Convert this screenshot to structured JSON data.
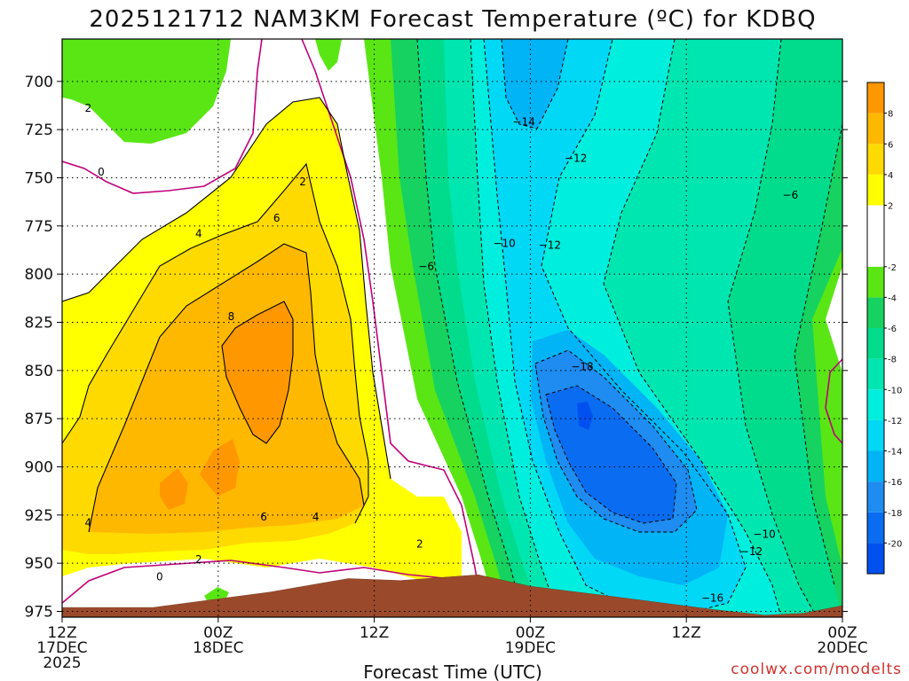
{
  "chart_data": {
    "type": "heatmap",
    "title": "2025121712 NAM3KM Forecast Temperature (ºC) for KDBQ",
    "xlabel": "Forecast Time (UTC)",
    "ylabel": "",
    "credit": "coolwx.com/modelts",
    "y_axis": {
      "unit": "hPa",
      "ticks": [
        700,
        725,
        750,
        775,
        800,
        825,
        850,
        875,
        900,
        925,
        950,
        975
      ],
      "tick_labels": [
        "700",
        "725",
        "750",
        "775",
        "800",
        "825",
        "850",
        "875",
        "900",
        "925",
        "950",
        "975"
      ],
      "ylim": [
        978,
        678
      ],
      "inverted": true
    },
    "x_axis": {
      "unit": "hours since 2025-12-17 12Z",
      "xlim": [
        0,
        60
      ],
      "ticks": [
        {
          "hour": 0,
          "lines": [
            "12Z",
            "17DEC",
            "2025"
          ]
        },
        {
          "hour": 12,
          "lines": [
            "00Z",
            "18DEC"
          ]
        },
        {
          "hour": 24,
          "lines": [
            "12Z"
          ]
        },
        {
          "hour": 36,
          "lines": [
            "00Z",
            "19DEC"
          ]
        },
        {
          "hour": 48,
          "lines": [
            "12Z"
          ]
        },
        {
          "hour": 60,
          "lines": [
            "00Z",
            "20DEC"
          ]
        }
      ]
    },
    "grid": true,
    "colorbar": {
      "levels": [
        -22,
        -20,
        -18,
        -16,
        -14,
        -12,
        -10,
        -8,
        -6,
        -4,
        -2,
        2,
        4,
        6,
        8,
        10
      ],
      "tick_labels": [
        "-20",
        "-18",
        "-16",
        "-14",
        "-12",
        "-10",
        "-8",
        "-6",
        "-4",
        "-2",
        "2",
        "4",
        "6",
        "8"
      ],
      "tick_values": [
        -20,
        -18,
        -16,
        -14,
        -12,
        -10,
        -8,
        -6,
        -4,
        -2,
        2,
        4,
        6,
        8
      ],
      "colors": [
        "#0050f0",
        "#0a6cf0",
        "#1e8cf0",
        "#00b4f5",
        "#00d8f5",
        "#00eedd",
        "#00e6b0",
        "#00dc8c",
        "#16d260",
        "#5ae614",
        "#ffffff",
        "#ffff00",
        "#ffda00",
        "#ffb800",
        "#ff9800"
      ]
    },
    "contour_labels": [
      {
        "text": "2",
        "hour": 2.0,
        "p": 714
      },
      {
        "text": "0",
        "hour": 3.0,
        "p": 747
      },
      {
        "text": "4",
        "hour": 10.5,
        "p": 779
      },
      {
        "text": "6",
        "hour": 16.5,
        "p": 771
      },
      {
        "text": "2",
        "hour": 18.5,
        "p": 752
      },
      {
        "text": "8",
        "hour": 13.0,
        "p": 822
      },
      {
        "text": "4",
        "hour": 2.0,
        "p": 929
      },
      {
        "text": "6",
        "hour": 15.5,
        "p": 926
      },
      {
        "text": "4",
        "hour": 19.5,
        "p": 926
      },
      {
        "text": "2",
        "hour": 10.5,
        "p": 948
      },
      {
        "text": "0",
        "hour": 7.5,
        "p": 957
      },
      {
        "text": "2",
        "hour": 27.5,
        "p": 940
      },
      {
        "text": "-6",
        "hour": 28.0,
        "p": 796
      },
      {
        "text": "-10",
        "hour": 34.0,
        "p": 784
      },
      {
        "text": "-12",
        "hour": 37.5,
        "p": 785
      },
      {
        "text": "-14",
        "hour": 35.5,
        "p": 721
      },
      {
        "text": "-12",
        "hour": 39.5,
        "p": 740
      },
      {
        "text": "-6",
        "hour": 56.0,
        "p": 759
      },
      {
        "text": "-18",
        "hour": 40.0,
        "p": 848
      },
      {
        "text": "-10",
        "hour": 54.0,
        "p": 935
      },
      {
        "text": "-12",
        "hour": 53.0,
        "p": 944
      },
      {
        "text": "-16",
        "hour": 50.0,
        "p": 968
      }
    ],
    "terrain": {
      "color": "#9a4a2b",
      "surface_pressure": [
        {
          "hour": 0,
          "p": 973
        },
        {
          "hour": 7,
          "p": 973
        },
        {
          "hour": 16,
          "p": 965
        },
        {
          "hour": 22,
          "p": 958
        },
        {
          "hour": 26,
          "p": 959
        },
        {
          "hour": 32,
          "p": 956
        },
        {
          "hour": 36,
          "p": 962
        },
        {
          "hour": 42,
          "p": 967
        },
        {
          "hour": 50,
          "p": 974
        },
        {
          "hour": 54,
          "p": 977
        },
        {
          "hour": 57,
          "p": 976
        },
        {
          "hour": 60,
          "p": 972
        }
      ]
    }
  }
}
